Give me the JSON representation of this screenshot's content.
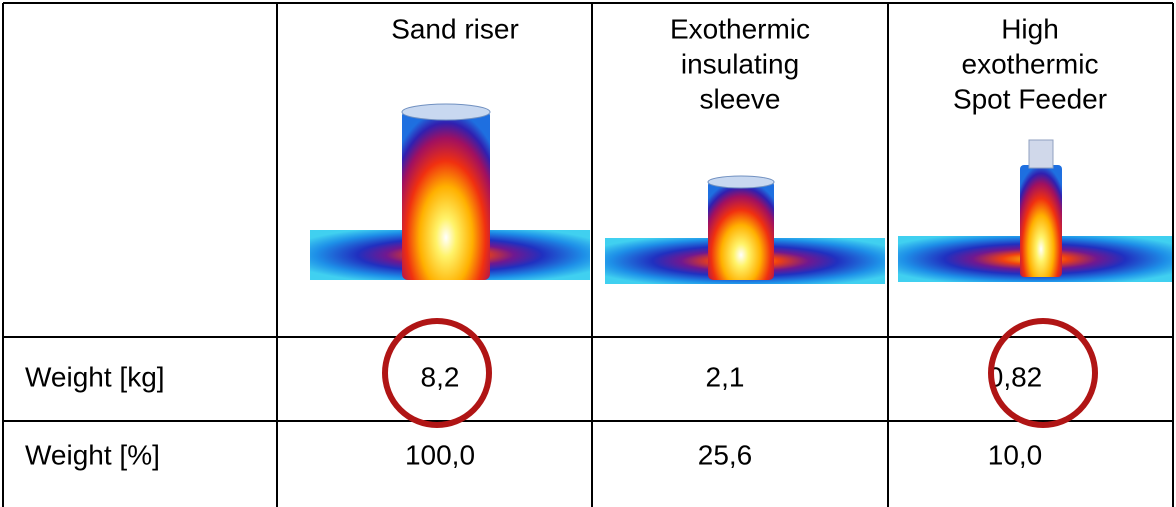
{
  "table": {
    "columns": [
      [
        "Sand riser"
      ],
      [
        "Exothermic",
        "insulating",
        "sleeve"
      ],
      [
        "High",
        "exothermic",
        "Spot Feeder"
      ]
    ],
    "rows": [
      {
        "label": "Weight [kg]",
        "values": [
          "8,2",
          "2,1",
          "0,82"
        ]
      },
      {
        "label": "Weight [%]",
        "values": [
          "100,0",
          "25,6",
          "10,0"
        ]
      }
    ]
  }
}
